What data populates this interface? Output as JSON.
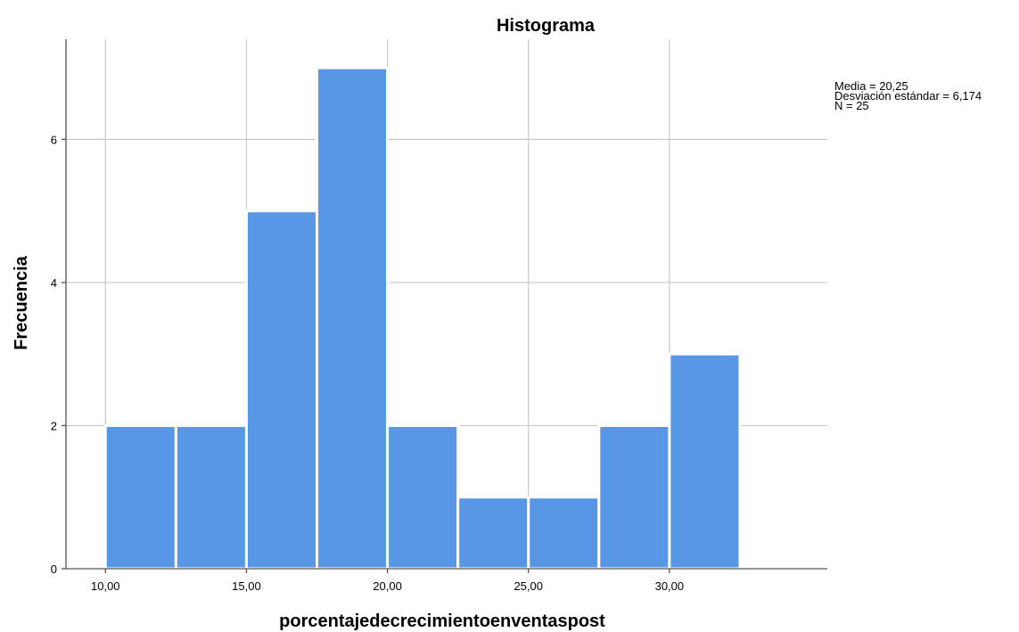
{
  "chart_data": {
    "type": "bar",
    "title": "Histograma",
    "xlabel": "porcentajedecrecimientoenventaspost",
    "ylabel": "Frecuencia",
    "bins": [
      {
        "start": 10.0,
        "end": 12.5,
        "count": 2
      },
      {
        "start": 12.5,
        "end": 15.0,
        "count": 2
      },
      {
        "start": 15.0,
        "end": 17.5,
        "count": 5
      },
      {
        "start": 17.5,
        "end": 20.0,
        "count": 7
      },
      {
        "start": 20.0,
        "end": 22.5,
        "count": 2
      },
      {
        "start": 22.5,
        "end": 25.0,
        "count": 1
      },
      {
        "start": 25.0,
        "end": 27.5,
        "count": 1
      },
      {
        "start": 27.5,
        "end": 30.0,
        "count": 2
      },
      {
        "start": 30.0,
        "end": 32.5,
        "count": 3
      }
    ],
    "xlim": [
      8.6,
      35.6
    ],
    "ylim": [
      0,
      7.4
    ],
    "x_ticks": [
      10,
      15,
      20,
      25,
      30
    ],
    "x_tick_labels": [
      "10,00",
      "15,00",
      "20,00",
      "25,00",
      "30,00"
    ],
    "y_ticks": [
      0,
      2,
      4,
      6
    ],
    "y_tick_labels": [
      "0",
      "2",
      "4",
      "6"
    ],
    "grid": true,
    "bar_color": "#5897e5",
    "stats": {
      "mean": "Media = 20,25",
      "sd": "Desviación estándar = 6,174",
      "n": "N = 25"
    },
    "stats_placement": "top-right"
  }
}
